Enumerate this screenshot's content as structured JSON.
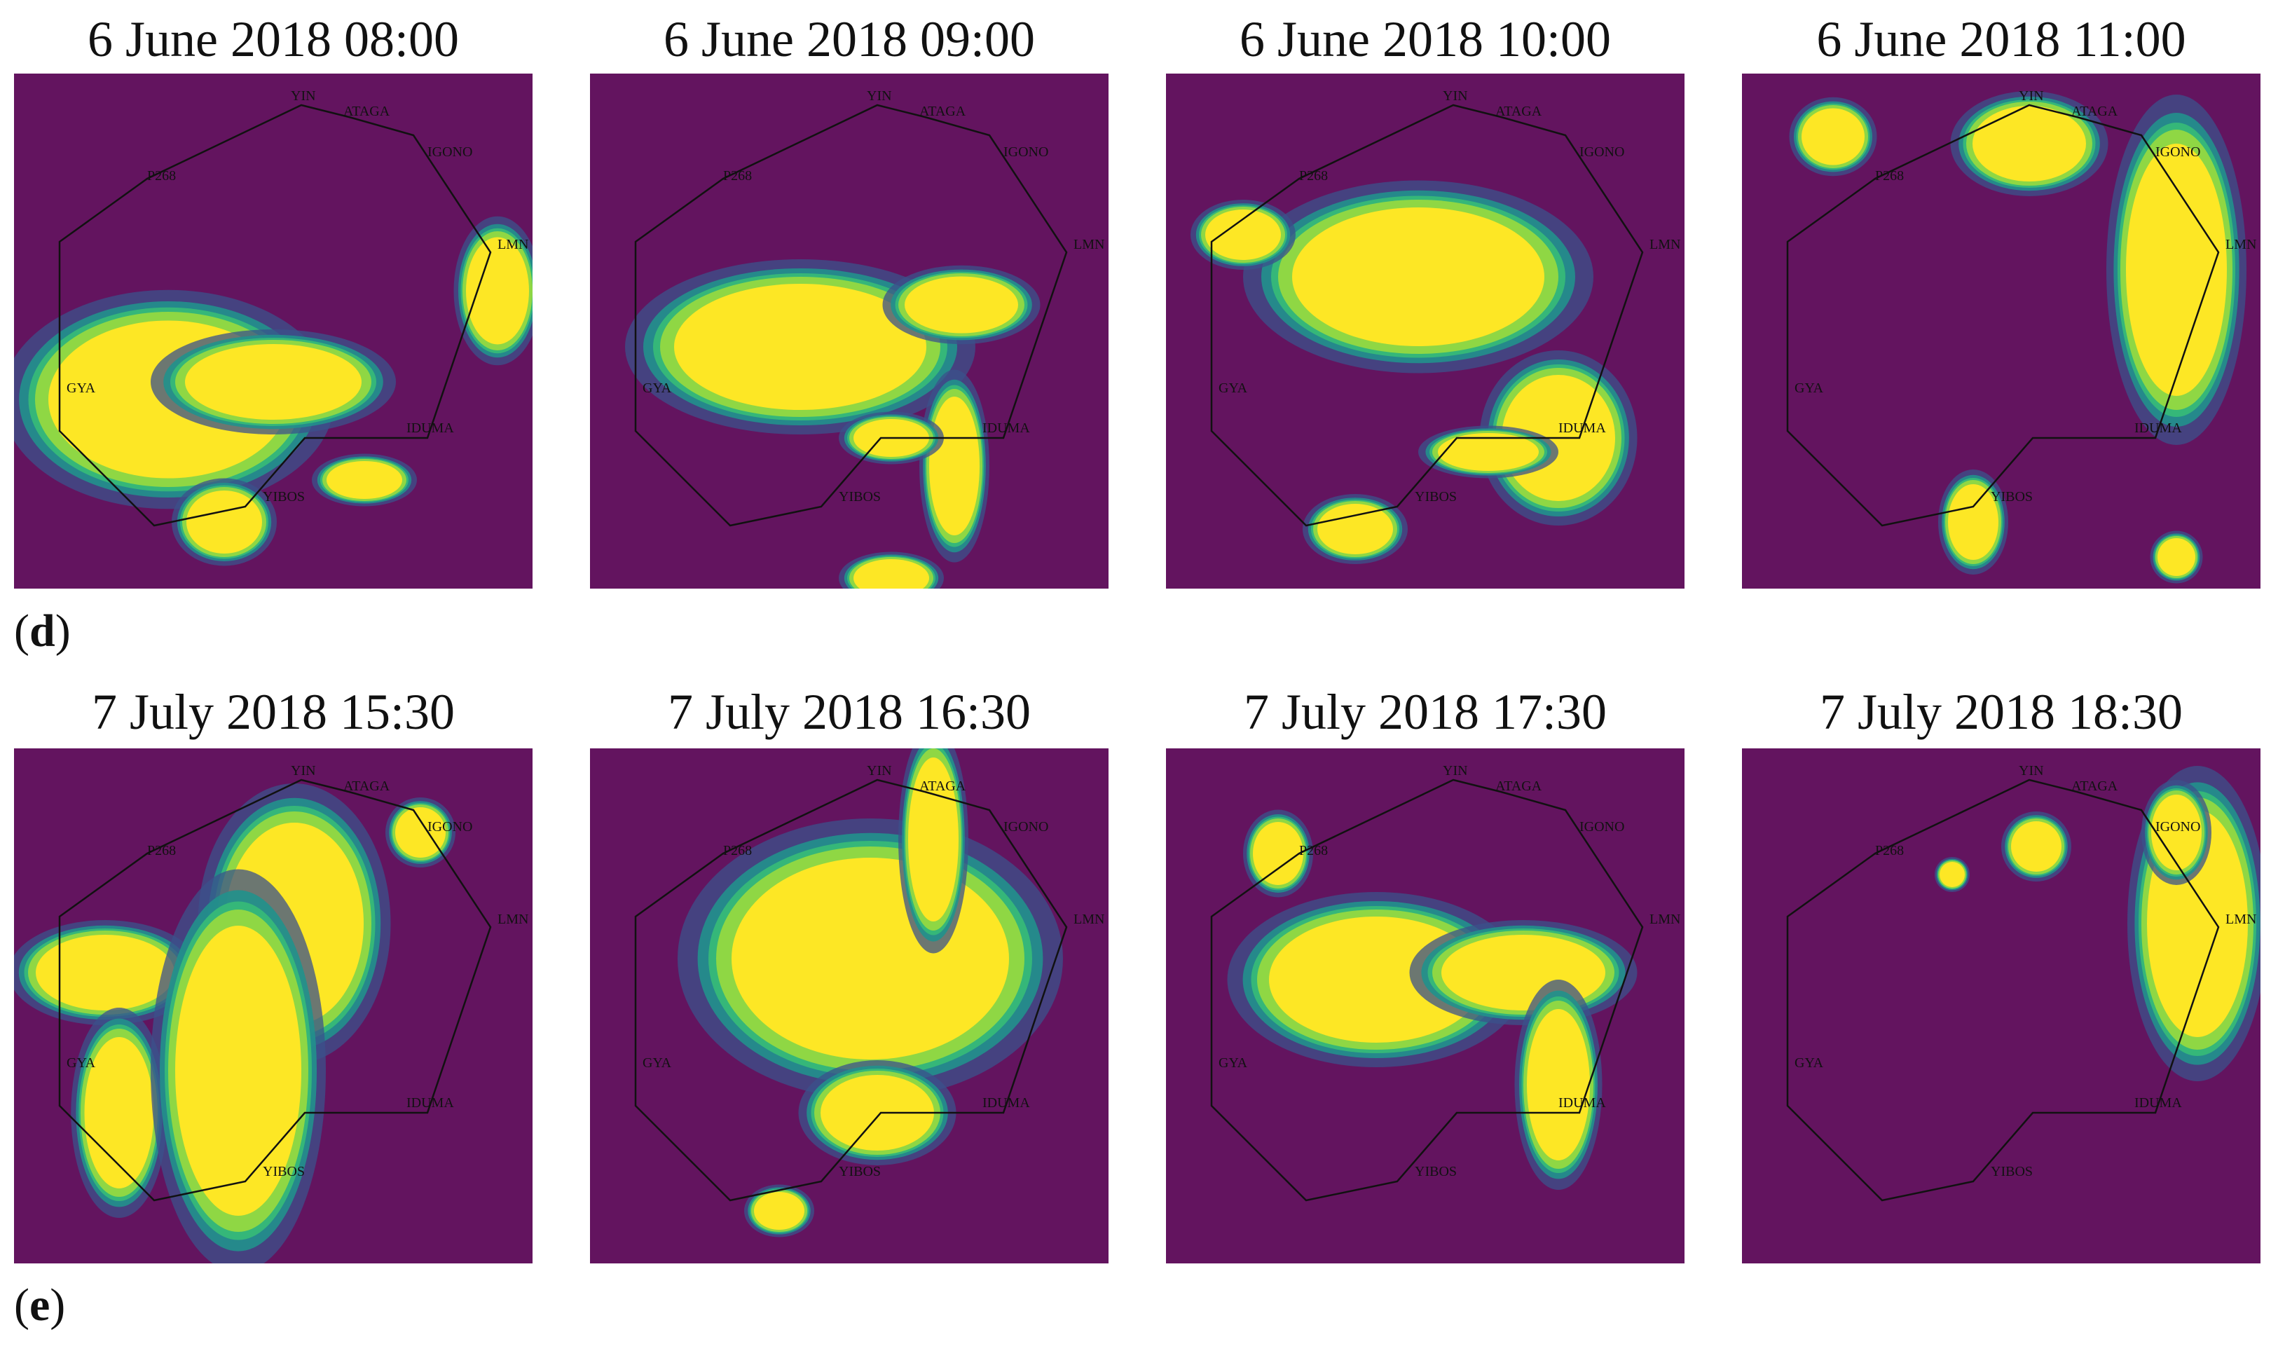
{
  "figure": {
    "rows": [
      {
        "label_open": "(",
        "label_letter": "d",
        "label_close": ")",
        "panels": [
          {
            "title": "6 June 2018 08:00"
          },
          {
            "title": "6 June 2018 09:00"
          },
          {
            "title": "6 June 2018 10:00"
          },
          {
            "title": "6 June 2018 11:00"
          }
        ]
      },
      {
        "label_open": "(",
        "label_letter": "e",
        "label_close": ")",
        "panels": [
          {
            "title": "7 July 2018 15:30"
          },
          {
            "title": "7 July 2018 16:30"
          },
          {
            "title": "7 July 2018 17:30"
          },
          {
            "title": "7 July 2018 18:30"
          }
        ]
      }
    ],
    "sector_waypoints": [
      "YIN",
      "ATAGA",
      "IGONO",
      "LMN",
      "IDUMA",
      "YIBOS",
      "GYA",
      "P268"
    ],
    "colors": {
      "background": "#63145f",
      "high": "#fde725",
      "mid_high": "#8fd744",
      "mid": "#35b779",
      "mid_low": "#21918c",
      "low": "#3b528b",
      "boundary": "#111111"
    }
  }
}
